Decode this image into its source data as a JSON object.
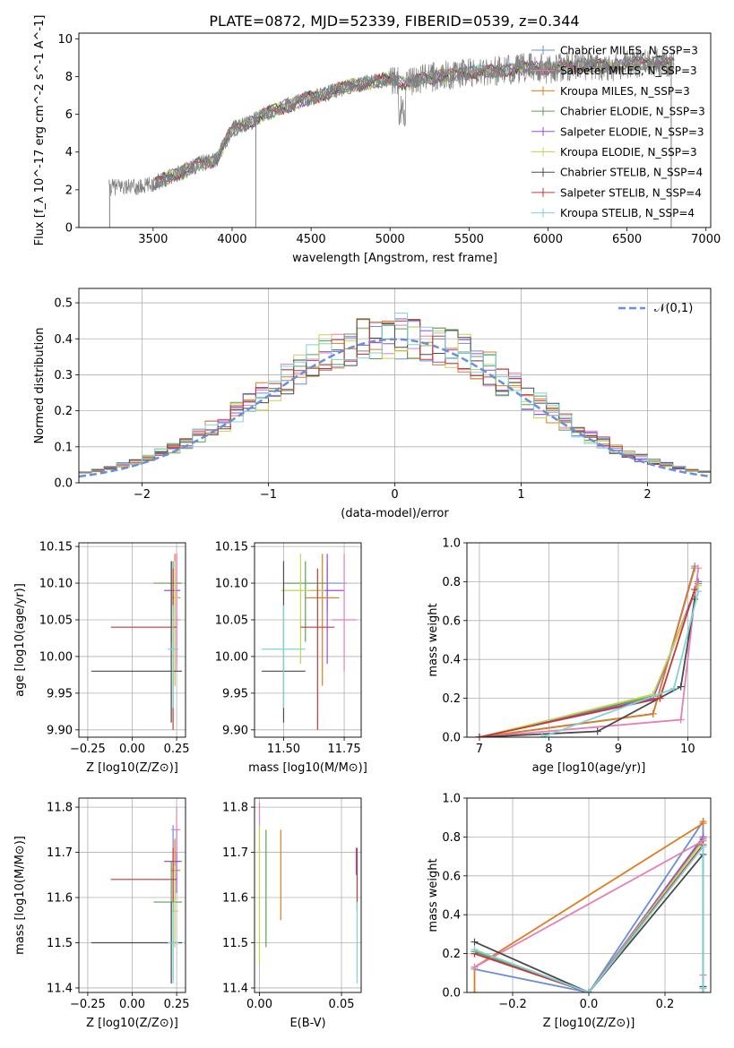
{
  "figure": {
    "title": "PLATE=0872, MJD=52339, FIBERID=0539, z=0.344"
  },
  "chart_data": [
    {
      "id": "spectrum",
      "type": "line",
      "xlabel": "wavelength [Angstrom, rest frame]",
      "ylabel": "Flux [f_λ 10^-17 erg cm^-2 s^-1 A^-1]",
      "xlim": [
        3030,
        7030
      ],
      "ylim": [
        0,
        10.3
      ],
      "xticks": [
        3500,
        4000,
        4500,
        5000,
        5500,
        6000,
        6500,
        7000
      ],
      "yticks": [
        0,
        2,
        4,
        6,
        8,
        10
      ],
      "legend_position": "upper-right",
      "continuum": {
        "x": [
          3220,
          3300,
          3400,
          3500,
          3600,
          3700,
          3800,
          3900,
          4000,
          4100,
          4200,
          4300,
          4400,
          4500,
          4600,
          4700,
          4800,
          4900,
          5000,
          5100,
          5200,
          5300,
          5400,
          5500,
          5600,
          5700,
          5800,
          5900,
          6000,
          6100,
          6200,
          6300,
          6400,
          6500,
          6600,
          6700,
          6800
        ],
        "y": [
          2.1,
          2.2,
          2.1,
          2.3,
          2.7,
          3.0,
          3.4,
          3.6,
          5.2,
          5.5,
          6.0,
          6.3,
          6.6,
          6.9,
          7.1,
          7.4,
          7.6,
          7.7,
          7.9,
          7.6,
          7.9,
          8.0,
          8.1,
          8.2,
          8.3,
          8.3,
          8.4,
          8.5,
          8.4,
          8.5,
          8.6,
          8.6,
          8.5,
          8.7,
          8.7,
          8.8,
          8.7
        ]
      },
      "data_start_x": 3220,
      "model_start_x": 3510,
      "models_end_x": 6800,
      "series_colors": [
        "#7f7f7f"
      ]
    },
    {
      "id": "residuals",
      "type": "line",
      "xlabel": "(data-model)/error",
      "ylabel": "Normed distribution",
      "xlim": [
        -2.5,
        2.5
      ],
      "ylim": [
        0,
        0.54
      ],
      "xticks": [
        -2,
        -1,
        0,
        1,
        2
      ],
      "yticks": [
        0.0,
        0.1,
        0.2,
        0.3,
        0.4,
        0.5
      ],
      "gaussian": {
        "name": "𝒩(0,1)",
        "color": "#6a8fd8"
      },
      "legend_position": "upper-right"
    },
    {
      "id": "age_vs_Z",
      "type": "scatter",
      "xlabel": "Z [log10(Z/Z⊙)]",
      "ylabel": "age  [log10(age/yr)]",
      "xlim": [
        -0.3,
        0.3
      ],
      "ylim": [
        9.89,
        10.155
      ],
      "xticks": [
        -0.25,
        0.0,
        0.25
      ],
      "yticks": [
        9.9,
        9.95,
        10.0,
        10.05,
        10.1,
        10.15
      ],
      "points": [
        {
          "x": 0.23,
          "xerr": [
            0.02,
            0.04
          ],
          "y": 10.1,
          "yerr": [
            0.04,
            0.03
          ],
          "color": "#6a8fd8"
        },
        {
          "x": 0.25,
          "xerr": [
            0.07,
            0.02
          ],
          "y": 10.09,
          "yerr": [
            0.1,
            0.05
          ],
          "color": "#9c4fd6"
        },
        {
          "x": 0.24,
          "xerr": [
            0.02,
            0.03
          ],
          "y": 10.08,
          "yerr": [
            0.12,
            0.06
          ],
          "color": "#e07b20"
        },
        {
          "x": 0.22,
          "xerr": [
            0.1,
            0.06
          ],
          "y": 10.1,
          "yerr": [
            0.08,
            0.03
          ],
          "color": "#5d9f56"
        },
        {
          "x": 0.25,
          "xerr": [
            0.03,
            0.02
          ],
          "y": 10.05,
          "yerr": [
            0.07,
            0.09
          ],
          "color": "#e57fb5"
        },
        {
          "x": 0.24,
          "xerr": [
            0.02,
            0.02
          ],
          "y": 10.08,
          "yerr": [
            0.12,
            0.05
          ],
          "color": "#c2d64e"
        },
        {
          "x": 0.22,
          "xerr": [
            0.45,
            0.06
          ],
          "y": 9.98,
          "yerr": [
            0.07,
            0.15
          ],
          "color": "#4a4a4a"
        },
        {
          "x": 0.23,
          "xerr": [
            0.35,
            0.02
          ],
          "y": 10.04,
          "yerr": [
            0.14,
            0.08
          ],
          "color": "#c43a3a"
        },
        {
          "x": 0.23,
          "xerr": [
            0.03,
            0.03
          ],
          "y": 10.01,
          "yerr": [
            0.08,
            0.06
          ],
          "color": "#7dd3d8"
        }
      ]
    },
    {
      "id": "age_vs_mass",
      "type": "scatter",
      "xlabel": "mass [log10(M/M⊙)]",
      "ylabel": "",
      "xlim": [
        11.38,
        11.82
      ],
      "ylim": [
        9.89,
        10.155
      ],
      "xticks": [
        11.5,
        11.75
      ],
      "yticks": [
        9.9,
        9.95,
        10.0,
        10.05,
        10.1,
        10.15
      ],
      "points": [
        {
          "x": 11.68,
          "xerr": [
            0.18,
            0.08
          ],
          "y": 10.1,
          "yerr": [
            0.04,
            0.03
          ],
          "color": "#6a8fd8"
        },
        {
          "x": 11.68,
          "xerr": [
            0.07,
            0.07
          ],
          "y": 10.09,
          "yerr": [
            0.1,
            0.05
          ],
          "color": "#9c4fd6"
        },
        {
          "x": 11.66,
          "xerr": [
            0.07,
            0.07
          ],
          "y": 10.08,
          "yerr": [
            0.12,
            0.06
          ],
          "color": "#e07b20"
        },
        {
          "x": 11.59,
          "xerr": [
            0.09,
            0.09
          ],
          "y": 10.1,
          "yerr": [
            0.08,
            0.03
          ],
          "color": "#5d9f56"
        },
        {
          "x": 11.75,
          "xerr": [
            0.05,
            0.05
          ],
          "y": 10.05,
          "yerr": [
            0.07,
            0.09
          ],
          "color": "#e57fb5"
        },
        {
          "x": 11.57,
          "xerr": [
            0.08,
            0.1
          ],
          "y": 10.09,
          "yerr": [
            0.1,
            0.05
          ],
          "color": "#c2d64e"
        },
        {
          "x": 11.5,
          "xerr": [
            0.09,
            0.09
          ],
          "y": 9.98,
          "yerr": [
            0.07,
            0.15
          ],
          "color": "#4a4a4a"
        },
        {
          "x": 11.64,
          "xerr": [
            0.07,
            0.07
          ],
          "y": 10.04,
          "yerr": [
            0.14,
            0.08
          ],
          "color": "#c43a3a"
        },
        {
          "x": 11.5,
          "xerr": [
            0.09,
            0.09
          ],
          "y": 10.01,
          "yerr": [
            0.08,
            0.06
          ],
          "color": "#7dd3d8"
        }
      ]
    },
    {
      "id": "weight_vs_age",
      "type": "line",
      "xlabel": "age  [log10(age/yr)]",
      "ylabel": "mass weight",
      "xlim": [
        6.82,
        10.33
      ],
      "ylim": [
        0,
        1.0
      ],
      "xticks": [
        7,
        8,
        9,
        10
      ],
      "yticks": [
        0.0,
        0.2,
        0.4,
        0.6,
        0.8,
        1.0
      ],
      "series": [
        {
          "color": "#6a8fd8",
          "x": [
            7.0,
            9.5,
            10.1
          ],
          "y": [
            0.0,
            0.12,
            0.88
          ]
        },
        {
          "color": "#e07b20",
          "x": [
            7.0,
            9.5,
            10.1
          ],
          "y": [
            0.0,
            0.12,
            0.87
          ]
        },
        {
          "color": "#5d9f56",
          "x": [
            7.0,
            9.5,
            10.15
          ],
          "y": [
            0.0,
            0.21,
            0.79
          ]
        },
        {
          "color": "#9c4fd6",
          "x": [
            7.0,
            9.5,
            10.15
          ],
          "y": [
            0.0,
            0.2,
            0.8
          ]
        },
        {
          "color": "#c2d64e",
          "x": [
            7.0,
            9.5,
            10.15
          ],
          "y": [
            0.0,
            0.22,
            0.78
          ]
        },
        {
          "color": "#e57fb5",
          "x": [
            7.0,
            9.9,
            10.15
          ],
          "y": [
            0.0,
            0.09,
            0.87
          ]
        },
        {
          "color": "#4a4a4a",
          "x": [
            7.0,
            8.7,
            9.9,
            10.1
          ],
          "y": [
            0.0,
            0.03,
            0.26,
            0.71
          ]
        },
        {
          "color": "#c43a3a",
          "x": [
            7.0,
            9.6,
            10.1
          ],
          "y": [
            0.0,
            0.2,
            0.76
          ]
        },
        {
          "color": "#7dd3d8",
          "x": [
            7.9,
            9.8,
            10.15
          ],
          "y": [
            0.0,
            0.25,
            0.75
          ]
        }
      ]
    },
    {
      "id": "mass_vs_Z",
      "type": "scatter",
      "xlabel": "Z [log10(Z/Z⊙)]",
      "ylabel": "mass [log10(M/M⊙)]",
      "xlim": [
        -0.3,
        0.3
      ],
      "ylim": [
        11.39,
        11.82
      ],
      "xticks": [
        -0.25,
        0.0,
        0.25
      ],
      "yticks": [
        11.4,
        11.5,
        11.6,
        11.7,
        11.8
      ],
      "points": [
        {
          "x": 0.23,
          "xerr": [
            0.02,
            0.05
          ],
          "y": 11.68,
          "yerr": [
            0.26,
            0.08
          ],
          "color": "#6a8fd8"
        },
        {
          "x": 0.25,
          "xerr": [
            0.07,
            0.02
          ],
          "y": 11.68,
          "yerr": [
            0.07,
            0.07
          ],
          "color": "#9c4fd6"
        },
        {
          "x": 0.24,
          "xerr": [
            0.02,
            0.03
          ],
          "y": 11.66,
          "yerr": [
            0.07,
            0.07
          ],
          "color": "#e07b20"
        },
        {
          "x": 0.22,
          "xerr": [
            0.1,
            0.06
          ],
          "y": 11.59,
          "yerr": [
            0.09,
            0.09
          ],
          "color": "#5d9f56"
        },
        {
          "x": 0.25,
          "xerr": [
            0.03,
            0.02
          ],
          "y": 11.75,
          "yerr": [
            0.05,
            0.05
          ],
          "color": "#e57fb5"
        },
        {
          "x": 0.24,
          "xerr": [
            0.02,
            0.02
          ],
          "y": 11.57,
          "yerr": [
            0.08,
            0.1
          ],
          "color": "#c2d64e"
        },
        {
          "x": 0.22,
          "xerr": [
            0.45,
            0.06
          ],
          "y": 11.5,
          "yerr": [
            0.09,
            0.09
          ],
          "color": "#4a4a4a"
        },
        {
          "x": 0.23,
          "xerr": [
            0.35,
            0.02
          ],
          "y": 11.64,
          "yerr": [
            0.07,
            0.07
          ],
          "color": "#c43a3a"
        },
        {
          "x": 0.23,
          "xerr": [
            0.03,
            0.03
          ],
          "y": 11.5,
          "yerr": [
            0.09,
            0.09
          ],
          "color": "#7dd3d8"
        }
      ]
    },
    {
      "id": "mass_vs_ebv",
      "type": "scatter",
      "xlabel": "E(B-V)",
      "ylabel": "",
      "xlim": [
        -0.003,
        0.062
      ],
      "ylim": [
        11.39,
        11.82
      ],
      "xticks": [
        0.0,
        0.05
      ],
      "yticks": [
        11.4,
        11.5,
        11.6,
        11.7,
        11.8
      ],
      "points": [
        {
          "x": 0.0,
          "xerr": [
            0,
            0
          ],
          "y": 11.75,
          "yerr": [
            0.05,
            0.06
          ],
          "color": "#e57fb5"
        },
        {
          "x": 0.0,
          "xerr": [
            0,
            0
          ],
          "y": 11.6,
          "yerr": [
            0.15,
            0.16
          ],
          "color": "#c2d64e"
        },
        {
          "x": 0.004,
          "xerr": [
            0,
            0
          ],
          "y": 11.62,
          "yerr": [
            0.13,
            0.13
          ],
          "color": "#5d9f56"
        },
        {
          "x": 0.013,
          "xerr": [
            0,
            0
          ],
          "y": 11.65,
          "yerr": [
            0.1,
            0.1
          ],
          "color": "#e07b20"
        },
        {
          "x": 0.059,
          "xerr": [
            0,
            0
          ],
          "y": 11.68,
          "yerr": [
            0.03,
            0.03
          ],
          "color": "#9c4fd6"
        },
        {
          "x": 0.0595,
          "xerr": [
            0,
            0
          ],
          "y": 11.64,
          "yerr": [
            0.07,
            0.07
          ],
          "color": "#c43a3a"
        },
        {
          "x": 0.0595,
          "xerr": [
            0,
            0
          ],
          "y": 11.5,
          "yerr": [
            0.09,
            0.09
          ],
          "color": "#7dd3d8"
        }
      ]
    },
    {
      "id": "weight_vs_Z",
      "type": "line",
      "xlabel": "Z [log10(Z/Z⊙)]",
      "ylabel": "mass weight",
      "xlim": [
        -0.32,
        0.32
      ],
      "ylim": [
        0,
        1.0
      ],
      "xticks": [
        -0.2,
        0.0,
        0.2
      ],
      "yticks": [
        0.0,
        0.2,
        0.4,
        0.6,
        0.8,
        1.0
      ],
      "series": [
        {
          "color": "#6a8fd8",
          "x": [
            -0.3,
            0.0,
            0.3,
            0.3
          ],
          "y": [
            0.12,
            0.0,
            0.88,
            0.03
          ]
        },
        {
          "color": "#e07b20",
          "x": [
            -0.3,
            -0.3,
            0.3,
            0.3
          ],
          "y": [
            0.0,
            0.13,
            0.87,
            0.88
          ]
        },
        {
          "color": "#5d9f56",
          "x": [
            -0.3,
            0.0,
            0.3,
            0.3
          ],
          "y": [
            0.21,
            0.0,
            0.79,
            0.0
          ]
        },
        {
          "color": "#9c4fd6",
          "x": [
            -0.3,
            0.0,
            0.3
          ],
          "y": [
            0.2,
            0.0,
            0.8
          ]
        },
        {
          "color": "#c2d64e",
          "x": [
            -0.3,
            0.0,
            0.3
          ],
          "y": [
            0.22,
            0.0,
            0.78
          ]
        },
        {
          "color": "#e57fb5",
          "x": [
            -0.3,
            0.3,
            0.3
          ],
          "y": [
            0.13,
            0.78,
            0.09
          ]
        },
        {
          "color": "#4a4a4a",
          "x": [
            -0.3,
            0.0,
            0.3,
            0.3
          ],
          "y": [
            0.26,
            0.0,
            0.71,
            0.03
          ]
        },
        {
          "color": "#c43a3a",
          "x": [
            -0.3,
            0.0,
            0.3
          ],
          "y": [
            0.2,
            0.0,
            0.76
          ]
        },
        {
          "color": "#7dd3d8",
          "x": [
            -0.3,
            0.0,
            0.3,
            0.3
          ],
          "y": [
            0.22,
            0.0,
            0.75,
            0.02
          ]
        }
      ]
    }
  ],
  "legend": [
    {
      "text": "Chabrier MILES, N_SSP=3",
      "color": "#6a8fd8"
    },
    {
      "text": "Salpeter MILES, N_SSP=3",
      "color": "#e57fb5"
    },
    {
      "text": "Kroupa MILES, N_SSP=3",
      "color": "#e07b20"
    },
    {
      "text": "Chabrier ELODIE, N_SSP=3",
      "color": "#5d9f56"
    },
    {
      "text": "Salpeter ELODIE, N_SSP=3",
      "color": "#9c4fd6"
    },
    {
      "text": "Kroupa ELODIE, N_SSP=3",
      "color": "#c2d64e"
    },
    {
      "text": "Chabrier STELIB, N_SSP=4",
      "color": "#4a4a4a"
    },
    {
      "text": "Salpeter STELIB, N_SSP=4",
      "color": "#c43a3a"
    },
    {
      "text": "Kroupa STELIB, N_SSP=4",
      "color": "#7dd3d8"
    }
  ],
  "model_colors": [
    "#6a8fd8",
    "#e57fb5",
    "#e07b20",
    "#5d9f56",
    "#9c4fd6",
    "#c2d64e",
    "#4a4a4a",
    "#c43a3a",
    "#7dd3d8"
  ]
}
